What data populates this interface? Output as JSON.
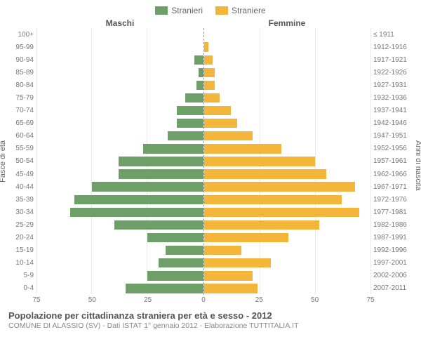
{
  "legend": {
    "male_label": "Stranieri",
    "female_label": "Straniere"
  },
  "column_headers": {
    "left": "Maschi",
    "right": "Femmine"
  },
  "axis_titles": {
    "left": "Fasce di età",
    "right": "Anni di nascita"
  },
  "footer": {
    "title": "Popolazione per cittadinanza straniera per età e sesso - 2012",
    "subtitle": "COMUNE DI ALASSIO (SV) - Dati ISTAT 1° gennaio 2012 - Elaborazione TUTTITALIA.IT"
  },
  "chart": {
    "type": "population-pyramid",
    "xmax": 75,
    "xticks": [
      75,
      50,
      25,
      0,
      25,
      50,
      75
    ],
    "male_color": "#6f9f68",
    "female_color": "#f3b53a",
    "grid_color": "#e9e9e9",
    "background_color": "#ffffff",
    "axis_text_color": "#777777",
    "categories": [
      {
        "age": "100+",
        "birth": "≤ 1911",
        "m": 0,
        "f": 0
      },
      {
        "age": "95-99",
        "birth": "1912-1916",
        "m": 0,
        "f": 2
      },
      {
        "age": "90-94",
        "birth": "1917-1921",
        "m": 4,
        "f": 4
      },
      {
        "age": "85-89",
        "birth": "1922-1926",
        "m": 2,
        "f": 5
      },
      {
        "age": "80-84",
        "birth": "1927-1931",
        "m": 3,
        "f": 5
      },
      {
        "age": "75-79",
        "birth": "1932-1936",
        "m": 8,
        "f": 7
      },
      {
        "age": "70-74",
        "birth": "1937-1941",
        "m": 12,
        "f": 12
      },
      {
        "age": "65-69",
        "birth": "1942-1946",
        "m": 12,
        "f": 15
      },
      {
        "age": "60-64",
        "birth": "1947-1951",
        "m": 16,
        "f": 22
      },
      {
        "age": "55-59",
        "birth": "1952-1956",
        "m": 27,
        "f": 35
      },
      {
        "age": "50-54",
        "birth": "1957-1961",
        "m": 38,
        "f": 50
      },
      {
        "age": "45-49",
        "birth": "1962-1966",
        "m": 38,
        "f": 55
      },
      {
        "age": "40-44",
        "birth": "1967-1971",
        "m": 50,
        "f": 68
      },
      {
        "age": "35-39",
        "birth": "1972-1976",
        "m": 58,
        "f": 62
      },
      {
        "age": "30-34",
        "birth": "1977-1981",
        "m": 60,
        "f": 70
      },
      {
        "age": "25-29",
        "birth": "1982-1986",
        "m": 40,
        "f": 52
      },
      {
        "age": "20-24",
        "birth": "1987-1991",
        "m": 25,
        "f": 38
      },
      {
        "age": "15-19",
        "birth": "1992-1996",
        "m": 17,
        "f": 17
      },
      {
        "age": "10-14",
        "birth": "1997-2001",
        "m": 20,
        "f": 30
      },
      {
        "age": "5-9",
        "birth": "2002-2006",
        "m": 25,
        "f": 22
      },
      {
        "age": "0-4",
        "birth": "2007-2011",
        "m": 35,
        "f": 24
      }
    ]
  }
}
